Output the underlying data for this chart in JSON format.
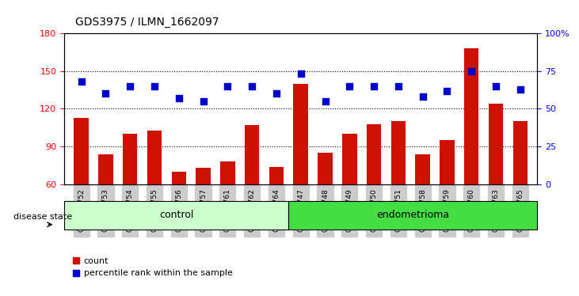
{
  "title": "GDS3975 / ILMN_1662097",
  "samples": [
    "GSM572752",
    "GSM572753",
    "GSM572754",
    "GSM572755",
    "GSM572756",
    "GSM572757",
    "GSM572761",
    "GSM572762",
    "GSM572764",
    "GSM572747",
    "GSM572748",
    "GSM572749",
    "GSM572750",
    "GSM572751",
    "GSM572758",
    "GSM572759",
    "GSM572760",
    "GSM572763",
    "GSM572765"
  ],
  "bar_values": [
    113,
    84,
    100,
    103,
    70,
    73,
    78,
    107,
    74,
    140,
    85,
    100,
    108,
    110,
    84,
    95,
    168,
    124,
    110
  ],
  "dot_values_pct": [
    68,
    60,
    65,
    65,
    57,
    55,
    65,
    65,
    60,
    73,
    55,
    65,
    65,
    65,
    58,
    62,
    75,
    65,
    63
  ],
  "ctrl_count": 9,
  "endo_count": 10,
  "group_labels": [
    "control",
    "endometrioma"
  ],
  "group_colors": [
    "#ccffcc",
    "#44dd44"
  ],
  "ylim_left": [
    60,
    180
  ],
  "ylim_right": [
    0,
    100
  ],
  "yticks_left": [
    60,
    90,
    120,
    150,
    180
  ],
  "yticks_right": [
    0,
    25,
    50,
    75,
    100
  ],
  "ytick_labels_right": [
    "0",
    "25",
    "50",
    "75",
    "100%"
  ],
  "grid_yticks": [
    90,
    120,
    150
  ],
  "bar_color": "#cc1100",
  "dot_color": "#0000cc",
  "label_count": "count",
  "label_pct": "percentile rank within the sample",
  "disease_state_label": "disease state"
}
